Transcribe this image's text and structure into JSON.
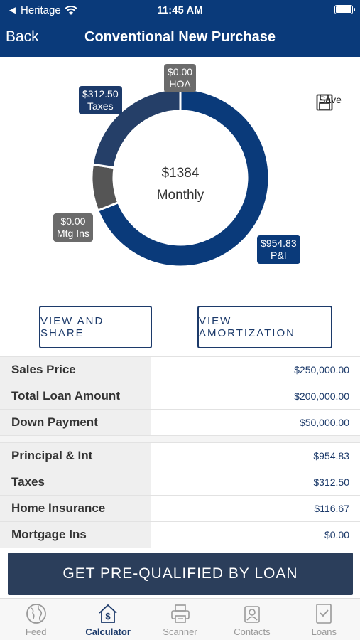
{
  "status_bar": {
    "carrier": "◄ Heritage",
    "time": "11:45 AM"
  },
  "nav": {
    "back_label": "Back",
    "title": "Conventional New Purchase"
  },
  "donut": {
    "center_amount": "$1384",
    "center_caption": "Monthly",
    "segments": [
      {
        "key": "pi",
        "amount": "$954.83",
        "label": "P&I",
        "value": 954.83,
        "color": "#0a3a7a"
      },
      {
        "key": "mtg_ins",
        "amount": "$0.00",
        "label": "Mtg Ins",
        "value": 0,
        "color": "#666666"
      },
      {
        "key": "insurance",
        "amount": "",
        "label": "",
        "value": 116.67,
        "color": "#555555"
      },
      {
        "key": "taxes",
        "amount": "$312.50",
        "label": "Taxes",
        "value": 312.5,
        "color": "#253f68"
      },
      {
        "key": "hoa",
        "amount": "$0.00",
        "label": "HOA",
        "value": 0,
        "color": "#6b6b6b"
      }
    ]
  },
  "save_label": "Save",
  "buttons": {
    "view_share": "VIEW AND SHARE",
    "view_amortization": "VIEW AMORTIZATION"
  },
  "summary": [
    {
      "label": "Sales Price",
      "value": "$250,000.00"
    },
    {
      "label": "Total Loan Amount",
      "value": "$200,000.00"
    },
    {
      "label": "Down Payment",
      "value": "$50,000.00"
    }
  ],
  "payment": [
    {
      "label": "Principal & Int",
      "value": "$954.83"
    },
    {
      "label": "Taxes",
      "value": "$312.50"
    },
    {
      "label": "Home Insurance",
      "value": "$116.67"
    },
    {
      "label": "Mortgage Ins",
      "value": "$0.00"
    }
  ],
  "cta_label": "GET PRE-QUALIFIED BY LOAN",
  "tabs": [
    {
      "label": "Feed",
      "icon": "globe-icon",
      "active": false
    },
    {
      "label": "Calculator",
      "icon": "house-dollar-icon",
      "active": true
    },
    {
      "label": "Scanner",
      "icon": "printer-icon",
      "active": false
    },
    {
      "label": "Contacts",
      "icon": "contacts-icon",
      "active": false
    },
    {
      "label": "Loans",
      "icon": "document-check-icon",
      "active": false
    }
  ]
}
